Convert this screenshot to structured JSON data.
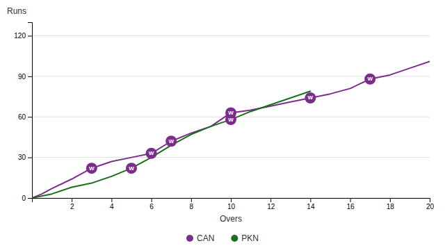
{
  "chart_data": {
    "type": "line",
    "xlabel": "Overs",
    "ylabel": "Runs",
    "xlim": [
      0,
      20
    ],
    "ylim": [
      0,
      130
    ],
    "xticks": [
      2,
      4,
      6,
      8,
      10,
      12,
      14,
      16,
      18,
      20
    ],
    "yticks": [
      0,
      30,
      60,
      90,
      120
    ],
    "grid": "y",
    "legend": "bottom",
    "series": [
      {
        "name": "CAN",
        "color": "#7B2D8B",
        "x": [
          0,
          0.5,
          1,
          2,
          3,
          4,
          5,
          6,
          7,
          8,
          9,
          10,
          11,
          12,
          13,
          14,
          15,
          16,
          17,
          18,
          19,
          20
        ],
        "values": [
          0,
          3,
          7,
          14,
          22,
          27,
          30,
          33,
          42,
          48,
          53,
          63,
          65,
          68,
          71,
          74,
          77,
          81,
          88,
          91,
          96,
          101
        ],
        "wickets": {
          "label": "W",
          "color": "#7B2D8B",
          "label_color": "#ffffff",
          "x": [
            3,
            6,
            7,
            10,
            14,
            17
          ],
          "values": [
            22,
            33,
            42,
            63,
            74,
            88
          ]
        }
      },
      {
        "name": "PKN",
        "color": "#1a6e1a",
        "x": [
          0,
          1,
          2,
          3,
          4,
          5,
          6,
          7,
          8,
          9,
          10,
          11,
          12,
          13,
          14
        ],
        "values": [
          0,
          3,
          8,
          11,
          16,
          22,
          30,
          39,
          47,
          53,
          58,
          64,
          69,
          74,
          79
        ],
        "wickets": {
          "label": "W",
          "color": "#7B2D8B",
          "label_color": "#ffffff",
          "x": [
            5,
            10
          ],
          "values": [
            22,
            58
          ]
        }
      }
    ]
  }
}
